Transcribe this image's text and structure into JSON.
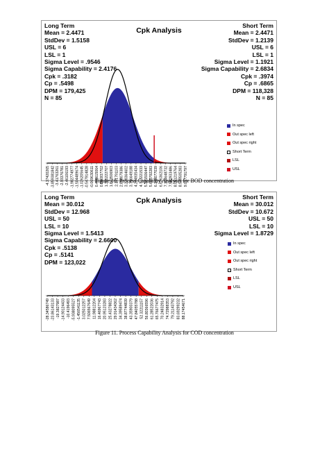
{
  "colors": {
    "in_spec": "#2a2aa0",
    "out_spec_left": "#e01010",
    "out_spec_right": "#e01010",
    "short_term": "#000000",
    "lsl": "#b01010",
    "usl": "#d01020"
  },
  "figures": [
    {
      "title": "Cpk Analysis",
      "long_term": {
        "heading": "Long Term",
        "lines": [
          "Mean = 2.4471",
          "StdDev = 1.5158",
          "USL = 6",
          "LSL = 1",
          "Sigma Level = .9546",
          "Sigma Capability = 2.4176",
          "Cpk = .3182",
          "Cp = .5498",
          "DPM = 179,425",
          "N = 85"
        ]
      },
      "short_term": {
        "heading": "Short Term",
        "lines": [
          "Mean = 2.4471",
          "StdDev = 1.2139",
          "USL = 6",
          "LSL = 1",
          "Sigma Level = 1.1921",
          "Sigma Capability = 2.6834",
          "Cpk = .3974",
          "Cp = .6865",
          "DPM = 118,328",
          "N = 85"
        ]
      },
      "legend": [
        "In spec",
        "Out spec left",
        "Out spec right",
        "Short Term",
        "LSL",
        "USL"
      ],
      "x_ticks": [
        "-4.37420265",
        "-3.859381842",
        "-3.41763261",
        "-2.93376781",
        "-2.46106193",
        "-1.982774977",
        "-1.504489674",
        "-1.026205645",
        "-0.547914828",
        "-0.069630611",
        "0.408615064",
        "0.886937702",
        "1.365222707",
        "1.843506903",
        "2.321791103",
        "2.800079386",
        "3.278364602",
        "3.756649188",
        "4.234935434",
        "4.713221533",
        "5.191506447",
        "5.669792283",
        "6.148077039",
        "6.626362106",
        "7.104648732",
        "7.582933486",
        "8.061219764",
        "8.539505283",
        "9.017791797"
      ],
      "caption": "Figure 10. Process Capability Analysis for BOD concentration"
    },
    {
      "title": "Cpk Analysis",
      "long_term": {
        "heading": "Long Term",
        "lines": [
          "Mean = 30.012",
          "StdDev = 12.968",
          "USL = 50",
          "LSL = 10",
          "Sigma Level = 1.5413",
          "Sigma Capability = 2.6600",
          "Cpk = .5138",
          "Cp = .5141",
          "DPM = 123,022"
        ]
      },
      "short_term": {
        "heading": "Short Term",
        "lines": [
          "Mean = 30.012",
          "StdDev = 10.672",
          "USL = 50",
          "LSL = 10",
          "Sigma Level = 1.8729"
        ]
      },
      "legend": [
        "In spec",
        "Out spec left",
        "Out spec right",
        "Short Term",
        "LSL",
        "USL"
      ],
      "x_ticks": [
        "-28.34586749",
        "-23.86143133",
        "-19.3827987",
        "-14.90124433",
        "-10.4196493",
        "-5.938095527",
        "-1.456541135",
        "3.025012257",
        "7.506567649",
        "11.98812204",
        "16.46967743",
        "20.95123283",
        "25.43278822",
        "29.91434362",
        "34.39589474",
        "38.87744839",
        "43.35900379",
        "47.84055788",
        "52.32211157",
        "56.80366596",
        "61.28522036",
        "65.76677475",
        "70.24832914",
        "74.72988353",
        "79.21143792",
        "83.69299232",
        "88.17454671"
      ],
      "caption": "Figure 11. Process Capability Analysis for COD concentration"
    }
  ]
}
